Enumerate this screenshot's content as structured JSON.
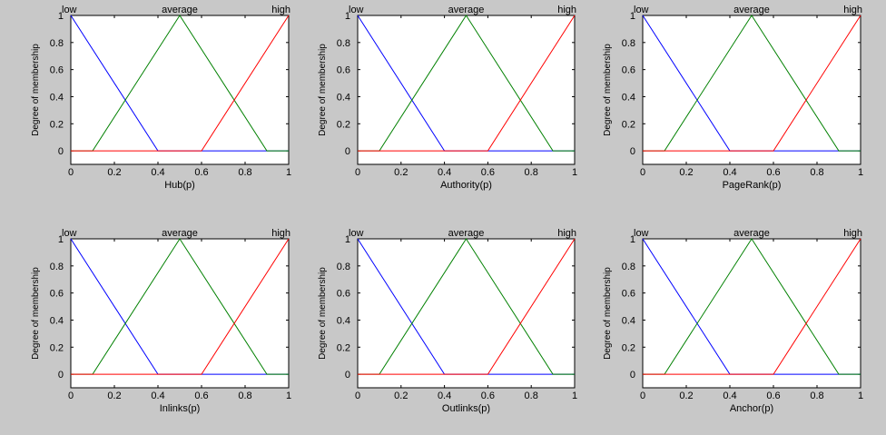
{
  "chart_data": [
    {
      "type": "line",
      "xlabel": "Hub(p)",
      "ylabel": "Degree of membership",
      "xlim": [
        0,
        1
      ],
      "ylim": [
        -0.1,
        1
      ],
      "xticks": [
        "0",
        "0.2",
        "0.4",
        "0.6",
        "0.8",
        "1"
      ],
      "yticks": [
        "0",
        "0.2",
        "0.4",
        "0.6",
        "0.8",
        "1"
      ],
      "series": [
        {
          "name": "low",
          "color": "#0000ff",
          "x": [
            0,
            0.4,
            1
          ],
          "y": [
            1,
            0,
            0
          ]
        },
        {
          "name": "average",
          "color": "#008000",
          "x": [
            0,
            0.1,
            0.5,
            0.9,
            1
          ],
          "y": [
            0,
            0,
            1,
            0,
            0
          ]
        },
        {
          "name": "high",
          "color": "#ff0000",
          "x": [
            0,
            0.6,
            1
          ],
          "y": [
            0,
            0,
            1
          ]
        }
      ]
    },
    {
      "type": "line",
      "xlabel": "Authority(p)",
      "ylabel": "Degree of membership",
      "xlim": [
        0,
        1
      ],
      "ylim": [
        -0.1,
        1
      ],
      "xticks": [
        "0",
        "0.2",
        "0.4",
        "0.6",
        "0.8",
        "1"
      ],
      "yticks": [
        "0",
        "0.2",
        "0.4",
        "0.6",
        "0.8",
        "1"
      ],
      "series": [
        {
          "name": "low",
          "color": "#0000ff",
          "x": [
            0,
            0.4,
            1
          ],
          "y": [
            1,
            0,
            0
          ]
        },
        {
          "name": "average",
          "color": "#008000",
          "x": [
            0,
            0.1,
            0.5,
            0.9,
            1
          ],
          "y": [
            0,
            0,
            1,
            0,
            0
          ]
        },
        {
          "name": "high",
          "color": "#ff0000",
          "x": [
            0,
            0.6,
            1
          ],
          "y": [
            0,
            0,
            1
          ]
        }
      ]
    },
    {
      "type": "line",
      "xlabel": "PageRank(p)",
      "ylabel": "Degree of membership",
      "xlim": [
        0,
        1
      ],
      "ylim": [
        -0.1,
        1
      ],
      "xticks": [
        "0",
        "0.2",
        "0.4",
        "0.6",
        "0.8",
        "1"
      ],
      "yticks": [
        "0",
        "0.2",
        "0.4",
        "0.6",
        "0.8",
        "1"
      ],
      "series": [
        {
          "name": "low",
          "color": "#0000ff",
          "x": [
            0,
            0.4,
            1
          ],
          "y": [
            1,
            0,
            0
          ]
        },
        {
          "name": "average",
          "color": "#008000",
          "x": [
            0,
            0.1,
            0.5,
            0.9,
            1
          ],
          "y": [
            0,
            0,
            1,
            0,
            0
          ]
        },
        {
          "name": "high",
          "color": "#ff0000",
          "x": [
            0,
            0.6,
            1
          ],
          "y": [
            0,
            0,
            1
          ]
        }
      ]
    },
    {
      "type": "line",
      "xlabel": "Inlinks(p)",
      "ylabel": "Degree of membership",
      "xlim": [
        0,
        1
      ],
      "ylim": [
        -0.1,
        1
      ],
      "xticks": [
        "0",
        "0.2",
        "0.4",
        "0.6",
        "0.8",
        "1"
      ],
      "yticks": [
        "0",
        "0.2",
        "0.4",
        "0.6",
        "0.8",
        "1"
      ],
      "series": [
        {
          "name": "low",
          "color": "#0000ff",
          "x": [
            0,
            0.4,
            1
          ],
          "y": [
            1,
            0,
            0
          ]
        },
        {
          "name": "average",
          "color": "#008000",
          "x": [
            0,
            0.1,
            0.5,
            0.9,
            1
          ],
          "y": [
            0,
            0,
            1,
            0,
            0
          ]
        },
        {
          "name": "high",
          "color": "#ff0000",
          "x": [
            0,
            0.6,
            1
          ],
          "y": [
            0,
            0,
            1
          ]
        }
      ]
    },
    {
      "type": "line",
      "xlabel": "Outlinks(p)",
      "ylabel": "Degree of membership",
      "xlim": [
        0,
        1
      ],
      "ylim": [
        -0.1,
        1
      ],
      "xticks": [
        "0",
        "0.2",
        "0.4",
        "0.6",
        "0.8",
        "1"
      ],
      "yticks": [
        "0",
        "0.2",
        "0.4",
        "0.6",
        "0.8",
        "1"
      ],
      "series": [
        {
          "name": "low",
          "color": "#0000ff",
          "x": [
            0,
            0.4,
            1
          ],
          "y": [
            1,
            0,
            0
          ]
        },
        {
          "name": "average",
          "color": "#008000",
          "x": [
            0,
            0.1,
            0.5,
            0.9,
            1
          ],
          "y": [
            0,
            0,
            1,
            0,
            0
          ]
        },
        {
          "name": "high",
          "color": "#ff0000",
          "x": [
            0,
            0.6,
            1
          ],
          "y": [
            0,
            0,
            1
          ]
        }
      ]
    },
    {
      "type": "line",
      "xlabel": "Anchor(p)",
      "ylabel": "Degree of membership",
      "xlim": [
        0,
        1
      ],
      "ylim": [
        -0.1,
        1
      ],
      "xticks": [
        "0",
        "0.2",
        "0.4",
        "0.6",
        "0.8",
        "1"
      ],
      "yticks": [
        "0",
        "0.2",
        "0.4",
        "0.6",
        "0.8",
        "1"
      ],
      "series": [
        {
          "name": "low",
          "color": "#0000ff",
          "x": [
            0,
            0.4,
            1
          ],
          "y": [
            1,
            0,
            0
          ]
        },
        {
          "name": "average",
          "color": "#008000",
          "x": [
            0,
            0.1,
            0.5,
            0.9,
            1
          ],
          "y": [
            0,
            0,
            1,
            0,
            0
          ]
        },
        {
          "name": "high",
          "color": "#ff0000",
          "x": [
            0,
            0.6,
            1
          ],
          "y": [
            0,
            0,
            1
          ]
        }
      ]
    }
  ]
}
